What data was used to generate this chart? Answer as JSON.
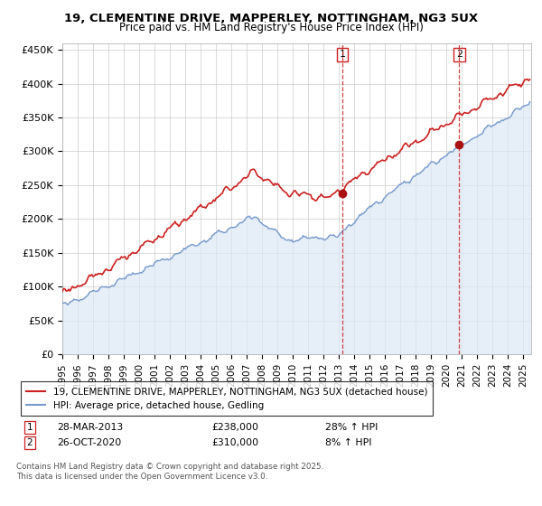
{
  "title_line1": "19, CLEMENTINE DRIVE, MAPPERLEY, NOTTINGHAM, NG3 5UX",
  "title_line2": "Price paid vs. HM Land Registry's House Price Index (HPI)",
  "ylabel_ticks": [
    "£0",
    "£50K",
    "£100K",
    "£150K",
    "£200K",
    "£250K",
    "£300K",
    "£350K",
    "£400K",
    "£450K"
  ],
  "ytick_values": [
    0,
    50000,
    100000,
    150000,
    200000,
    250000,
    300000,
    350000,
    400000,
    450000
  ],
  "ylim": [
    0,
    460000
  ],
  "xlim_start": 1995.0,
  "xlim_end": 2025.5,
  "xticks": [
    1995,
    1996,
    1997,
    1998,
    1999,
    2000,
    2001,
    2002,
    2003,
    2004,
    2005,
    2006,
    2007,
    2008,
    2009,
    2010,
    2011,
    2012,
    2013,
    2014,
    2015,
    2016,
    2017,
    2018,
    2019,
    2020,
    2021,
    2022,
    2023,
    2024,
    2025
  ],
  "hpi_color": "#7799cc",
  "hpi_fill_color": "#dce8f5",
  "price_color": "#cc2222",
  "marker_color": "#aa1111",
  "t1_year": 2013.23,
  "t2_year": 2020.82,
  "t1_price": 238000,
  "t2_price": 310000,
  "legend_line1": "19, CLEMENTINE DRIVE, MAPPERLEY, NOTTINGHAM, NG3 5UX (detached house)",
  "legend_line2": "HPI: Average price, detached house, Gedling",
  "footer": "Contains HM Land Registry data © Crown copyright and database right 2025.\nThis data is licensed under the Open Government Licence v3.0.",
  "plot_bg_color": "#ffffff",
  "grid_color": "#cccccc"
}
